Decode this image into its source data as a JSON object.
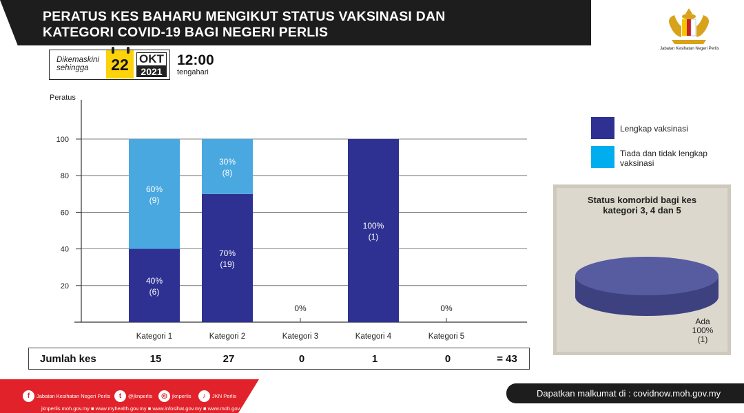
{
  "header": {
    "title_line1": "PERATUS KES BAHARU MENGIKUT STATUS VAKSINASI  DAN",
    "title_line2": "KATEGORI COVID-19 BAGI NEGERI PERLIS",
    "agency": "Jabatan Kesihatan Negeri Perlis",
    "crest_icon": "state-crest-icon"
  },
  "update": {
    "label_line1": "Dikemaskini",
    "label_line2": "sehingga",
    "day": "22",
    "month": "OKT",
    "year": "2021",
    "time": "12:00",
    "time_note": "tengahari"
  },
  "chart_data": [
    {
      "type": "bar",
      "stacked": true,
      "ylabel": "Peratus",
      "ylim": [
        0,
        100
      ],
      "yticks": [
        20,
        40,
        60,
        80,
        100
      ],
      "grid": true,
      "legend_position": "right",
      "categories": [
        "Kategori 1",
        "Kategori 2",
        "Kategori 3",
        "Kategori 4",
        "Kategori 5"
      ],
      "series": [
        {
          "name": "Lengkap vaksinasi",
          "color": "#2e3192",
          "values": [
            40,
            70,
            0,
            100,
            0
          ],
          "counts": [
            6,
            19,
            0,
            1,
            0
          ],
          "labels": [
            "40%",
            "70%",
            "",
            "100%",
            ""
          ],
          "count_labels": [
            "(6)",
            "(19)",
            "",
            "(1)",
            ""
          ]
        },
        {
          "name": "Tiada dan tidak lengkap vaksinasi",
          "color": "#4aa8e0",
          "values": [
            60,
            30,
            0,
            0,
            0
          ],
          "counts": [
            9,
            8,
            0,
            0,
            0
          ],
          "labels": [
            "60%",
            "30%",
            "",
            "",
            ""
          ],
          "count_labels": [
            "(9)",
            "(8)",
            "",
            "",
            ""
          ]
        }
      ],
      "zero_labels": [
        "",
        "",
        "0%",
        "",
        "0%"
      ],
      "legend_swatch_colors": [
        "#2e3192",
        "#00aeef"
      ],
      "legend_labels": [
        "Lengkap vaksinasi",
        "Tiada dan tidak lengkap",
        "vaksinasi"
      ]
    },
    {
      "type": "pie",
      "title": "Status komorbid bagi kes kategori 3, 4 dan 5",
      "title_line1": "Status komorbid bagi kes",
      "title_line2": "kategori 3, 4 dan 5",
      "slices": [
        {
          "name": "Ada",
          "value": 100,
          "count": 1,
          "color": "#4f5399"
        }
      ],
      "slice_label_name": "Ada",
      "slice_label_pct": "100%",
      "slice_label_count": "(1)"
    }
  ],
  "totals": {
    "label": "Jumlah kes",
    "values": [
      "15",
      "27",
      "0",
      "1",
      "0"
    ],
    "grand_total": "= 43"
  },
  "footer": {
    "social": [
      {
        "icon": "facebook-icon",
        "glyph": "f",
        "text": "Jabatan Kesihatan Negeri Perlis"
      },
      {
        "icon": "twitter-icon",
        "glyph": "t",
        "text": "@jknperlis"
      },
      {
        "icon": "instagram-icon",
        "glyph": "◎",
        "text": "jknperlis"
      },
      {
        "icon": "tiktok-icon",
        "glyph": "♪",
        "text": "JKN Perlis"
      }
    ],
    "websites": "jknperlis.moh.gov.my ■ www.myhealth.gov.my ■ www.infosihat.gov.my ■ www.moh.gov.my",
    "info": "Dapatkan malkumat di : covidnow.moh.gov.my"
  }
}
